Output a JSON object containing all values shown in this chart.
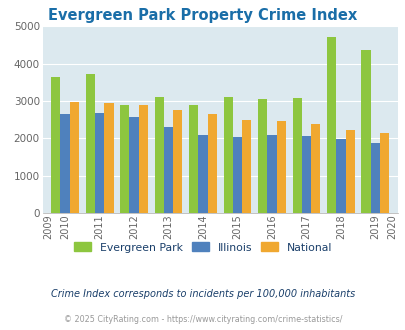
{
  "title": "Evergreen Park Property Crime Index",
  "title_color": "#1a6ea8",
  "years": [
    2009,
    2010,
    2011,
    2012,
    2013,
    2014,
    2015,
    2016,
    2017,
    2018,
    2019,
    2020
  ],
  "data_years": [
    2010,
    2011,
    2012,
    2013,
    2014,
    2015,
    2016,
    2017,
    2018,
    2019
  ],
  "evergreen_park": [
    3630,
    3730,
    2900,
    3100,
    2900,
    3120,
    3060,
    3080,
    4720,
    4380
  ],
  "illinois": [
    2650,
    2680,
    2580,
    2300,
    2100,
    2030,
    2080,
    2050,
    1970,
    1860
  ],
  "national": [
    2960,
    2950,
    2900,
    2750,
    2640,
    2500,
    2470,
    2370,
    2210,
    2140
  ],
  "color_ep": "#8dc63f",
  "color_il": "#4f81bd",
  "color_na": "#f0a830",
  "background_color": "#dce9ef",
  "ylim": [
    0,
    5000
  ],
  "yticks": [
    0,
    1000,
    2000,
    3000,
    4000,
    5000
  ],
  "legend_labels": [
    "Evergreen Park",
    "Illinois",
    "National"
  ],
  "note": "Crime Index corresponds to incidents per 100,000 inhabitants",
  "note_color": "#1a3f6a",
  "copyright": "© 2025 CityRating.com - https://www.cityrating.com/crime-statistics/",
  "copyright_color": "#999999",
  "bar_width": 0.27,
  "grid_color": "#ffffff",
  "axis_tick_color": "#666666"
}
